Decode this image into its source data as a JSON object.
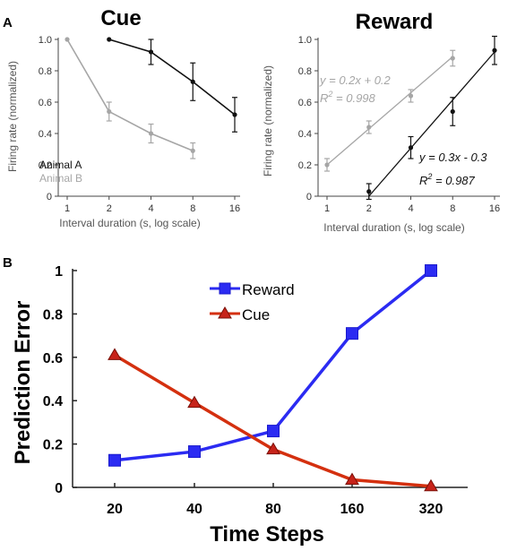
{
  "panel_labels": {
    "a": "A",
    "b": "B"
  },
  "chart_data": [
    {
      "type": "line",
      "title": "Cue",
      "xlabel": "Interval duration (s, log scale)",
      "ylabel": "Firing rate (normalized)",
      "x_scale": "log2",
      "xticks": [
        "1",
        "2",
        "4",
        "8",
        "16"
      ],
      "yticks": [
        "0",
        "0.2",
        "0.4",
        "0.6",
        "0.8",
        "1.0"
      ],
      "ylim": [
        0,
        1.0
      ],
      "legend_position": "bottom-left",
      "grid": false,
      "series": [
        {
          "name": "Animal A",
          "color": "#111111",
          "x": [
            2,
            4,
            8,
            16
          ],
          "y": [
            1.0,
            0.92,
            0.73,
            0.52
          ],
          "err": [
            0,
            0.08,
            0.12,
            0.11
          ]
        },
        {
          "name": "Animal B",
          "color": "#a6a6a6",
          "x": [
            1,
            2,
            4,
            8
          ],
          "y": [
            1.0,
            0.54,
            0.4,
            0.29
          ],
          "err": [
            0,
            0.06,
            0.06,
            0.05
          ]
        }
      ]
    },
    {
      "type": "line",
      "title": "Reward",
      "xlabel": "Interval duration (s, log scale)",
      "ylabel": "Firing rate (normalized)",
      "x_scale": "log2",
      "xticks": [
        "1",
        "2",
        "4",
        "8",
        "16"
      ],
      "yticks": [
        "0",
        "0.2",
        "0.4",
        "0.6",
        "0.8",
        "1.0"
      ],
      "ylim": [
        0,
        1.0
      ],
      "grid": false,
      "series": [
        {
          "color": "#a6a6a6",
          "x": [
            1,
            2,
            4,
            8
          ],
          "y": [
            0.2,
            0.44,
            0.64,
            0.88
          ],
          "err": [
            0.04,
            0.04,
            0.04,
            0.05
          ],
          "fit": {
            "equation": "y = 0.2x + 0.2",
            "r2": "R2 = 0.998",
            "x_range": [
              1,
              8
            ],
            "y_range": [
              0.2,
              0.89
            ]
          }
        },
        {
          "color": "#111111",
          "x": [
            2,
            4,
            8,
            16
          ],
          "y": [
            0.03,
            0.31,
            0.54,
            0.93
          ],
          "err": [
            0.05,
            0.07,
            0.09,
            0.09
          ],
          "fit": {
            "equation": "y = 0.3x - 0.3",
            "r2": "R2 = 0.987",
            "x_range": [
              2,
              16
            ],
            "y_range": [
              0.0,
              0.92
            ]
          }
        }
      ]
    },
    {
      "type": "line",
      "title": "",
      "xlabel": "Time Steps",
      "ylabel": "Prediction Error",
      "x_scale": "categorical",
      "categories": [
        "20",
        "40",
        "80",
        "160",
        "320"
      ],
      "yticks": [
        "0",
        "0.2",
        "0.4",
        "0.6",
        "0.8",
        "1"
      ],
      "ylim": [
        0,
        1
      ],
      "legend_position": "top-center",
      "grid": false,
      "series": [
        {
          "name": "Reward",
          "color": "#2b2bf2",
          "marker": "square",
          "values": [
            0.125,
            0.165,
            0.26,
            0.71,
            1.0
          ]
        },
        {
          "name": "Cue",
          "color": "#d4300f",
          "marker": "triangle",
          "values": [
            0.61,
            0.39,
            0.175,
            0.035,
            0.005
          ]
        }
      ]
    }
  ]
}
